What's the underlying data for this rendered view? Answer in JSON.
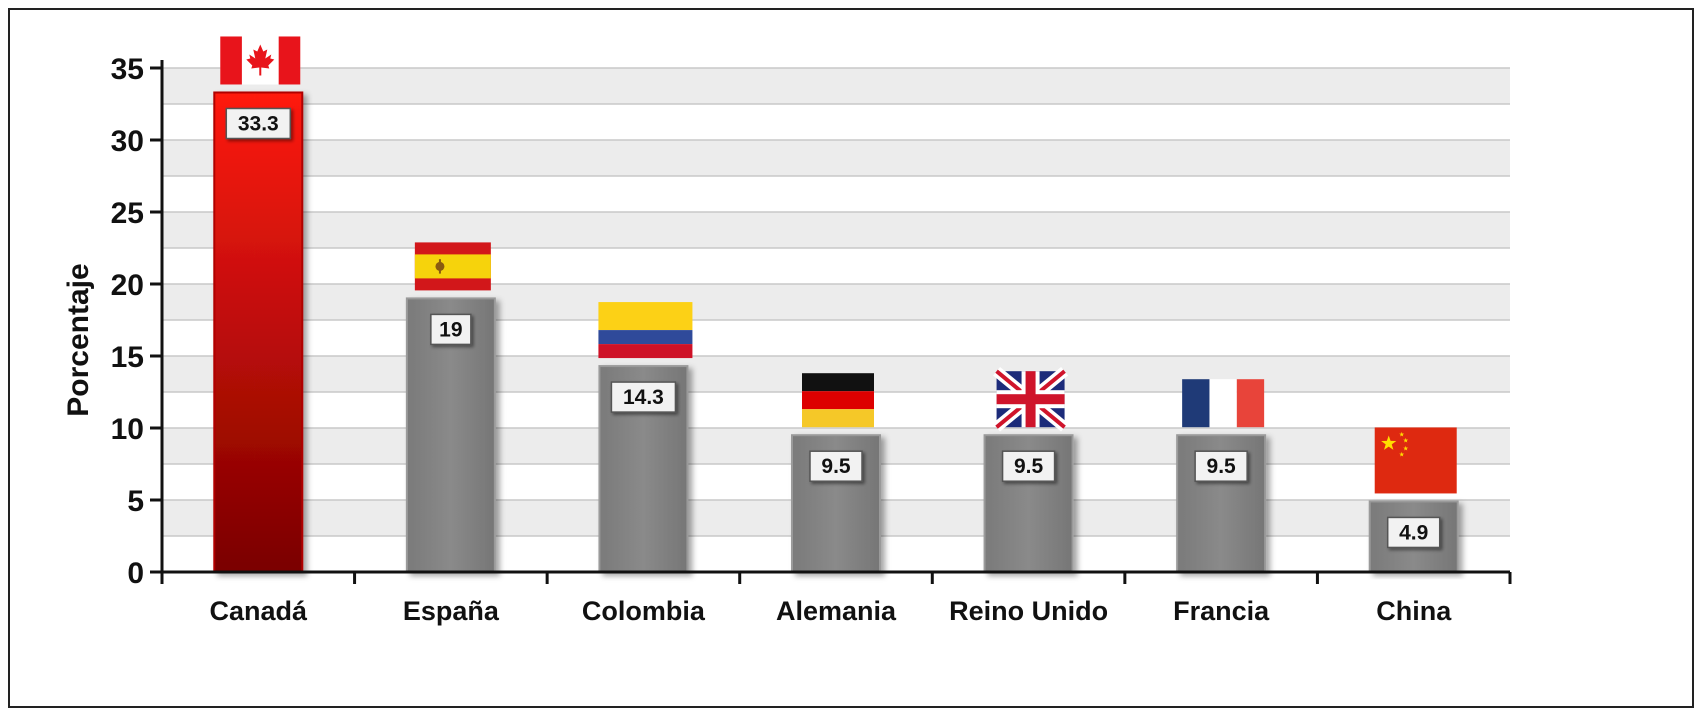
{
  "chart_data": {
    "type": "bar",
    "categories": [
      "Canadá",
      "España",
      "Colombia",
      "Alemania",
      "Reino Unido",
      "Francia",
      "China"
    ],
    "values": [
      33.3,
      19,
      14.3,
      9.5,
      9.5,
      9.5,
      4.9
    ],
    "data_labels": [
      "33.3",
      "19",
      "14.3",
      "9.5",
      "9.5",
      "9.5",
      "4.9"
    ],
    "flags": [
      "canada-flag",
      "spain-flag",
      "colombia-flag",
      "germany-flag",
      "uk-flag",
      "france-flag",
      "china-flag"
    ],
    "title": "",
    "xlabel": "",
    "ylabel": "Porcentaje",
    "ylim": [
      0,
      35
    ],
    "yticks": [
      0,
      5,
      10,
      15,
      20,
      25,
      30,
      35
    ],
    "grid": true,
    "highlight_index": 0,
    "colors": {
      "highlight_top": "#ff1a10",
      "highlight_bottom": "#7a0000",
      "bar": "#808080",
      "bar_edge": "#9a9a9a",
      "grid_band": "#ececec",
      "grid_line": "#c8c8c8",
      "axis": "#111111"
    }
  }
}
